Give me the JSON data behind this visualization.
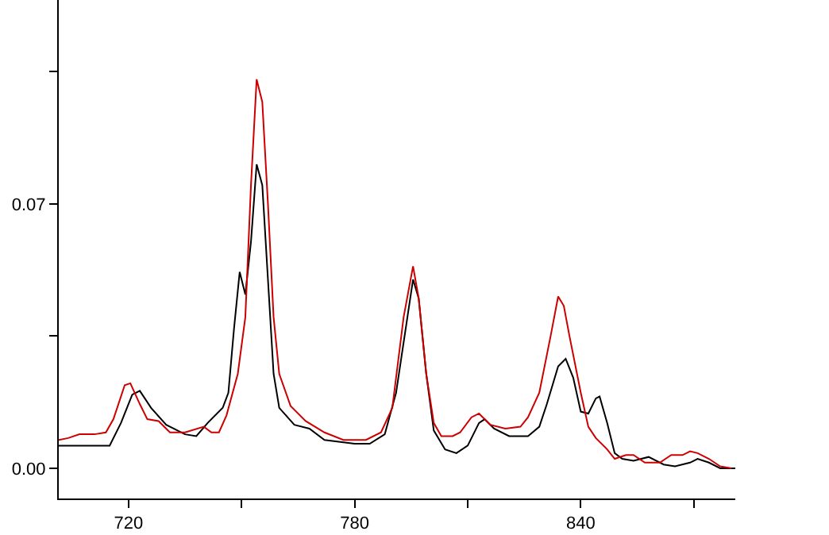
{
  "chart_data": {
    "type": "line",
    "xlim": [
      701.5,
      881
    ],
    "ylim": [
      -0.008,
      0.124
    ],
    "xticks": [
      720,
      {
        "value": 750,
        "label": null
      },
      780,
      {
        "value": 810,
        "label": null
      },
      840,
      {
        "value": 870,
        "label": null
      }
    ],
    "yticks": [
      {
        "value": 0,
        "label": "0.00"
      },
      {
        "value": 0.035,
        "label": null
      },
      0.07,
      {
        "value": 0.105,
        "label": null
      }
    ],
    "grid": false,
    "marker": "none",
    "line_style": "solid",
    "series": [
      {
        "color": "#000000",
        "x": [
          701.5,
          715,
          718,
          721,
          723,
          726,
          730,
          735,
          738,
          741,
          745,
          746.5,
          748,
          749.5,
          751,
          752.5,
          754,
          755.5,
          757,
          758.5,
          760,
          764,
          768,
          772,
          780,
          784,
          788,
          791,
          794,
          795.5,
          797,
          799,
          801,
          804,
          807,
          810,
          813,
          814.5,
          817,
          821,
          826,
          829,
          831,
          834,
          836,
          838,
          840,
          842,
          844,
          845,
          847,
          849,
          851,
          854,
          858,
          862,
          865,
          869,
          871,
          874,
          877,
          881
        ],
        "values": [
          0.006,
          0.006,
          0.012,
          0.0195,
          0.0205,
          0.016,
          0.0115,
          0.009,
          0.0085,
          0.012,
          0.016,
          0.02,
          0.037,
          0.052,
          0.046,
          0.06,
          0.0805,
          0.075,
          0.05,
          0.025,
          0.016,
          0.0115,
          0.0105,
          0.0075,
          0.0065,
          0.0065,
          0.009,
          0.02,
          0.04,
          0.05,
          0.045,
          0.025,
          0.01,
          0.005,
          0.004,
          0.006,
          0.012,
          0.013,
          0.0105,
          0.0085,
          0.0085,
          0.011,
          0.017,
          0.027,
          0.029,
          0.024,
          0.015,
          0.0145,
          0.0185,
          0.019,
          0.012,
          0.004,
          0.0025,
          0.002,
          0.003,
          0.001,
          0.0005,
          0.0015,
          0.0025,
          0.0015,
          0.0,
          0.0
        ]
      },
      {
        "color": "#cc0000",
        "x": [
          701.5,
          704,
          707,
          711,
          714,
          716,
          719,
          720.5,
          723,
          725,
          728,
          731,
          735,
          740,
          742,
          744,
          746,
          749,
          751,
          752.5,
          754,
          755.5,
          757,
          758.5,
          760,
          763,
          767,
          772,
          777,
          783,
          787,
          790,
          793,
          795.5,
          797,
          799,
          801,
          803,
          806,
          808,
          811,
          813,
          816,
          820,
          824,
          826,
          829,
          832,
          834,
          835.5,
          837,
          840,
          842,
          844,
          847,
          849,
          852,
          854,
          857,
          861,
          864,
          867,
          869,
          871,
          874,
          877,
          880
        ],
        "values": [
          0.0075,
          0.008,
          0.009,
          0.009,
          0.0095,
          0.013,
          0.022,
          0.0225,
          0.017,
          0.013,
          0.0125,
          0.0095,
          0.0095,
          0.011,
          0.0095,
          0.0095,
          0.014,
          0.025,
          0.04,
          0.075,
          0.103,
          0.097,
          0.07,
          0.04,
          0.025,
          0.0165,
          0.0125,
          0.0095,
          0.0075,
          0.0075,
          0.0095,
          0.016,
          0.04,
          0.0535,
          0.045,
          0.025,
          0.012,
          0.0085,
          0.0085,
          0.0095,
          0.0135,
          0.0145,
          0.0115,
          0.0105,
          0.011,
          0.0135,
          0.02,
          0.035,
          0.0455,
          0.043,
          0.035,
          0.02,
          0.011,
          0.008,
          0.005,
          0.0025,
          0.0035,
          0.0035,
          0.0015,
          0.0015,
          0.0035,
          0.0035,
          0.0045,
          0.004,
          0.0025,
          0.0005,
          0.0
        ]
      }
    ]
  }
}
